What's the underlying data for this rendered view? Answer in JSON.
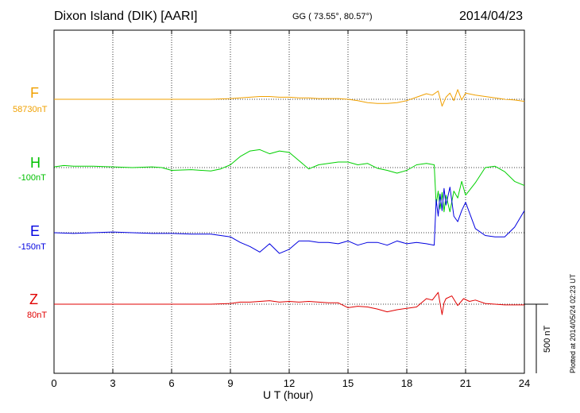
{
  "header": {
    "title": "Dixon Island (DIK)  [AARI]",
    "coords": "GG ( 73.55°,  80.57°)",
    "date": "2014/04/23"
  },
  "footer": {
    "plotted": "Plotted at 2014/05/24 02:23 UT"
  },
  "chart_data": {
    "type": "line",
    "title": "Dixon Island (DIK)  [AARI]",
    "xlabel": "U T (hour)",
    "xlim": [
      0,
      24
    ],
    "xticks": [
      0,
      3,
      6,
      9,
      12,
      15,
      18,
      21,
      24
    ],
    "scale_bar": "500 nT",
    "grid": true,
    "series": [
      {
        "name": "F",
        "baseline": "58730nT",
        "color": "#f0a000",
        "x": [
          0,
          1,
          2,
          3,
          4,
          5,
          6,
          7,
          8,
          9,
          9.5,
          10,
          10.5,
          11,
          11.5,
          12,
          12.5,
          13,
          13.5,
          14,
          14.5,
          15,
          15.5,
          16,
          16.5,
          17,
          17.5,
          18,
          18.5,
          19,
          19.3,
          19.6,
          19.8,
          20,
          20.2,
          20.4,
          20.6,
          20.8,
          21,
          21.5,
          22,
          22.5,
          23,
          23.5,
          24
        ],
        "values": [
          0,
          0,
          0,
          0,
          0,
          0,
          0,
          0,
          0,
          5,
          10,
          15,
          20,
          20,
          15,
          15,
          10,
          10,
          5,
          5,
          5,
          0,
          -10,
          -25,
          -30,
          -30,
          -25,
          -10,
          15,
          40,
          30,
          60,
          -50,
          15,
          45,
          -10,
          70,
          -5,
          45,
          30,
          20,
          10,
          0,
          -5,
          -15
        ]
      },
      {
        "name": "H",
        "baseline": "-100nT",
        "color": "#00d000",
        "x": [
          0,
          0.5,
          1,
          2,
          3,
          4,
          5,
          5.5,
          6,
          7,
          8,
          8.5,
          9,
          9.5,
          10,
          10.5,
          11,
          11.5,
          12,
          12.5,
          13,
          13.5,
          14,
          14.5,
          15,
          15.5,
          16,
          16.5,
          17,
          17.5,
          18,
          18.5,
          19,
          19.4,
          19.5,
          19.6,
          19.7,
          19.8,
          19.9,
          20,
          20.2,
          20.4,
          20.6,
          20.8,
          21,
          21.5,
          22,
          22.5,
          23,
          23.5,
          24
        ],
        "values": [
          5,
          15,
          10,
          10,
          5,
          0,
          5,
          0,
          -20,
          -15,
          -25,
          -10,
          20,
          80,
          120,
          130,
          100,
          120,
          110,
          50,
          -10,
          20,
          30,
          40,
          40,
          20,
          30,
          -5,
          -20,
          -40,
          -20,
          20,
          30,
          20,
          -270,
          -170,
          -300,
          -180,
          -320,
          -200,
          -320,
          -170,
          -220,
          -100,
          -200,
          -110,
          0,
          10,
          -30,
          -100,
          -130
        ]
      },
      {
        "name": "E",
        "baseline": "-150nT",
        "color": "#0000e0",
        "x": [
          0,
          1,
          2,
          3,
          4,
          5,
          6,
          7,
          8,
          8.5,
          9,
          9.5,
          10,
          10.5,
          11,
          11.5,
          12,
          12.5,
          13,
          13.5,
          14,
          14.5,
          15,
          15.5,
          16,
          16.5,
          17,
          17.5,
          18,
          18.5,
          19,
          19.4,
          19.5,
          19.6,
          19.7,
          19.8,
          19.9,
          20,
          20.2,
          20.4,
          20.6,
          20.8,
          21,
          21.5,
          22,
          22.5,
          23,
          23.5,
          24
        ],
        "values": [
          0,
          -5,
          0,
          5,
          0,
          -5,
          -5,
          -10,
          -10,
          -20,
          -30,
          -70,
          -100,
          -140,
          -80,
          -150,
          -120,
          -60,
          -60,
          -70,
          -70,
          -80,
          -60,
          -90,
          -70,
          -70,
          -90,
          -60,
          -80,
          -70,
          -80,
          -90,
          240,
          120,
          280,
          160,
          320,
          200,
          330,
          120,
          80,
          160,
          220,
          30,
          -20,
          -30,
          -30,
          40,
          160
        ]
      },
      {
        "name": "Z",
        "baseline": "80nT",
        "color": "#e00000",
        "x": [
          0,
          1,
          2,
          3,
          4,
          5,
          6,
          7,
          8,
          9,
          9.5,
          10,
          10.5,
          11,
          11.5,
          12,
          12.5,
          13,
          13.5,
          14,
          14.5,
          15,
          15.5,
          16,
          16.5,
          17,
          17.5,
          18,
          18.5,
          19,
          19.3,
          19.6,
          19.8,
          19.9,
          20,
          20.3,
          20.6,
          20.9,
          21.2,
          21.5,
          22,
          22.5,
          23,
          23.5,
          24
        ],
        "values": [
          0,
          0,
          0,
          0,
          0,
          0,
          0,
          0,
          0,
          5,
          15,
          15,
          20,
          25,
          15,
          20,
          15,
          20,
          15,
          10,
          10,
          -25,
          -15,
          -20,
          -35,
          -55,
          -40,
          -30,
          -20,
          40,
          30,
          85,
          -75,
          10,
          40,
          60,
          -10,
          40,
          20,
          30,
          5,
          0,
          -5,
          -5,
          -5
        ]
      }
    ]
  }
}
